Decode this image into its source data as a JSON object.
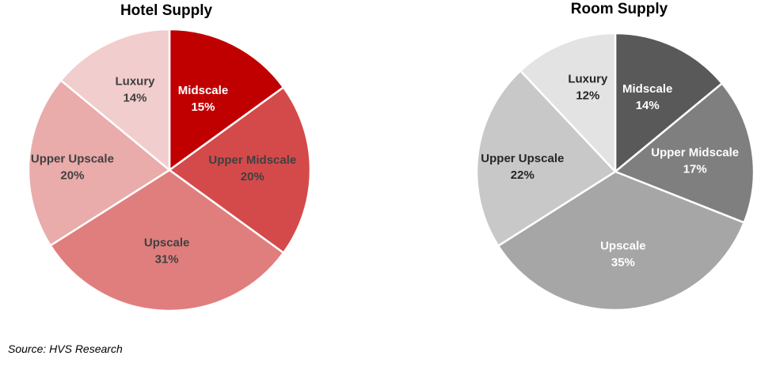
{
  "chart_data": [
    {
      "type": "pie",
      "title": "Hotel Supply",
      "series": [
        {
          "category": "Midscale",
          "value": 15,
          "value_label": "15%",
          "color": "#C00000",
          "label_color": "#ffffff"
        },
        {
          "category": "Upper Midscale",
          "value": 20,
          "value_label": "20%",
          "color": "#D44A4A",
          "label_color": "#404040"
        },
        {
          "category": "Upscale",
          "value": 31,
          "value_label": "31%",
          "color": "#E07E7E",
          "label_color": "#404040"
        },
        {
          "category": "Upper Upscale",
          "value": 20,
          "value_label": "20%",
          "color": "#EAABAB",
          "label_color": "#404040"
        },
        {
          "category": "Luxury",
          "value": 14,
          "value_label": "14%",
          "color": "#F2CDCD",
          "label_color": "#404040"
        }
      ],
      "start": "top",
      "direction": "clockwise",
      "slice_border": "#ffffff"
    },
    {
      "type": "pie",
      "title": "Room Supply",
      "series": [
        {
          "category": "Midscale",
          "value": 14,
          "value_label": "14%",
          "color": "#595959",
          "label_color": "#ffffff"
        },
        {
          "category": "Upper Midscale",
          "value": 17,
          "value_label": "17%",
          "color": "#7F7F7F",
          "label_color": "#ffffff"
        },
        {
          "category": "Upscale",
          "value": 35,
          "value_label": "35%",
          "color": "#A6A6A6",
          "label_color": "#ffffff"
        },
        {
          "category": "Upper Upscale",
          "value": 22,
          "value_label": "22%",
          "color": "#C8C8C8",
          "label_color": "#262626"
        },
        {
          "category": "Luxury",
          "value": 12,
          "value_label": "12%",
          "color": "#E3E3E3",
          "label_color": "#262626"
        }
      ],
      "start": "top",
      "direction": "clockwise",
      "slice_border": "#ffffff"
    }
  ],
  "source_note": "Source: HVS Research"
}
